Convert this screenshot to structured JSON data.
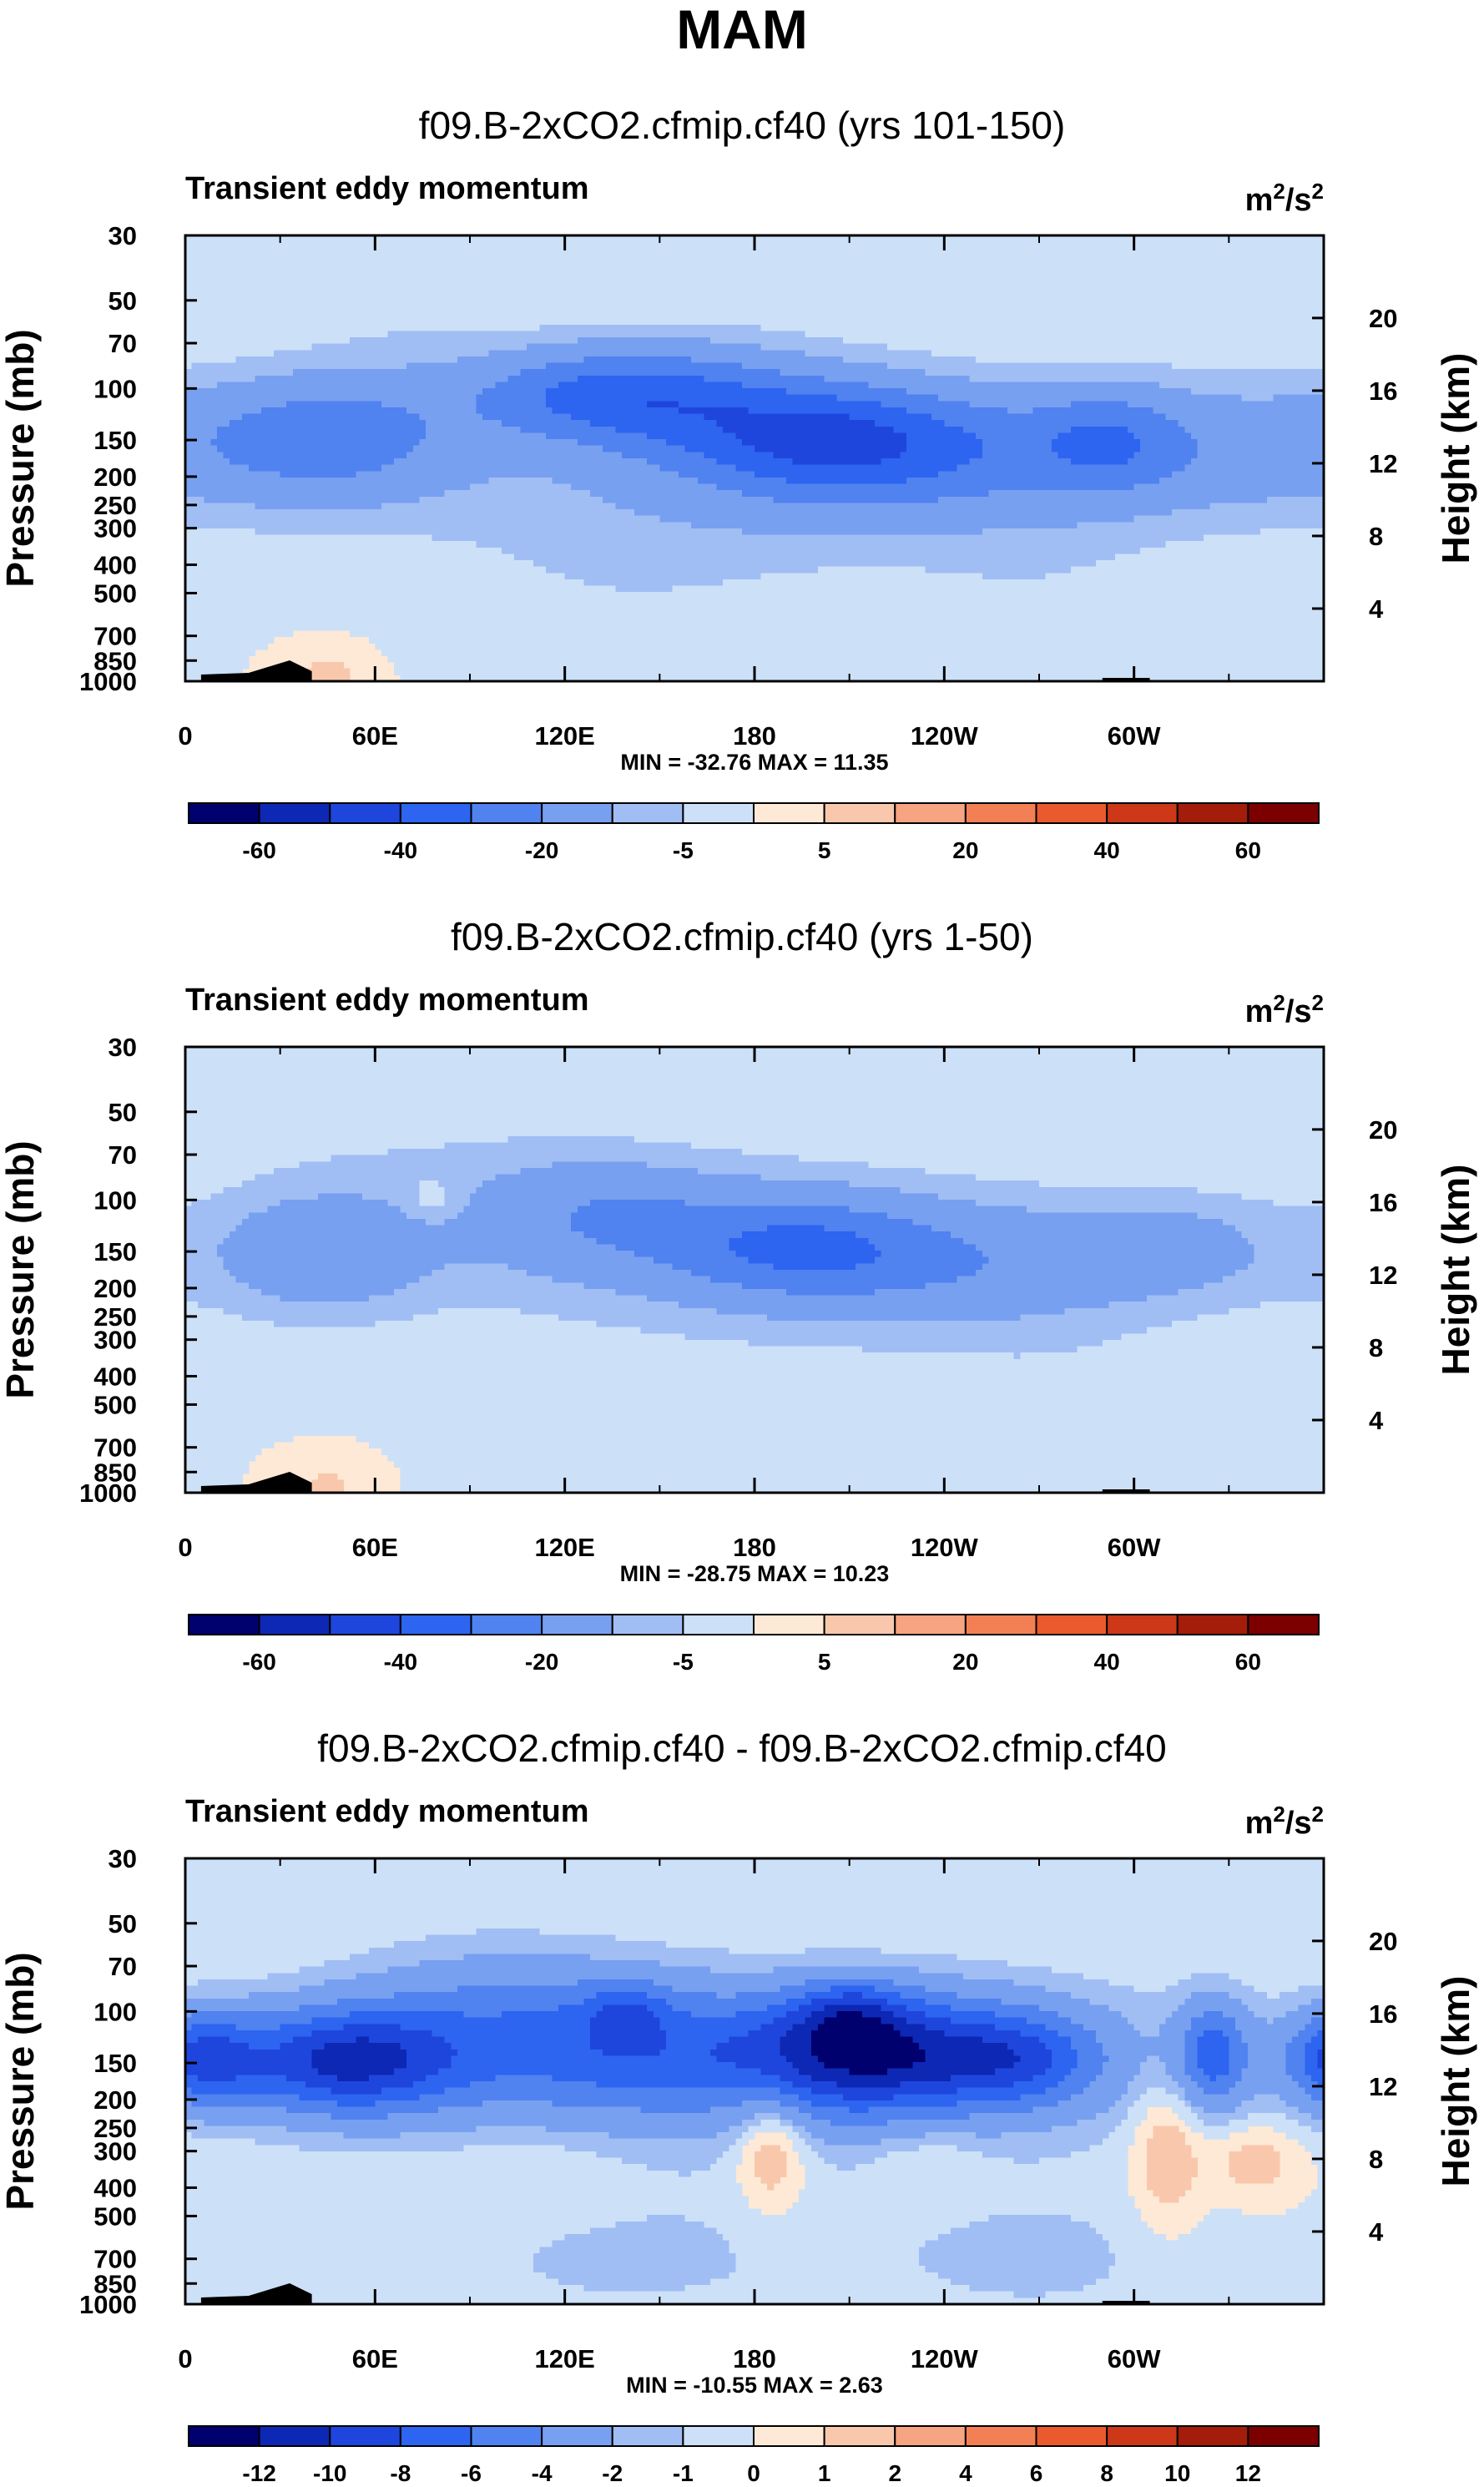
{
  "title": "MAM",
  "units_base": "m",
  "units_exp1": "2",
  "units_sep": "/s",
  "units_exp2": "2",
  "pressure_axis_label": "Pressure (mb)",
  "height_axis_label": "Height (km)",
  "colors": {
    "scale": [
      "#00006e",
      "#0d28b4",
      "#1e46dc",
      "#2d64f0",
      "#5082f0",
      "#78a0f0",
      "#a0bef4",
      "#cce0f8",
      "#fde9d6",
      "#f9c8ac",
      "#f6a482",
      "#f28054",
      "#ea5a2e",
      "#cc3818",
      "#a41c0a",
      "#7c0000"
    ],
    "land": "#000000"
  },
  "chart_data": [
    {
      "type": "contour",
      "title": "f09.B-2xCO2.cfmip.cf40 (yrs 101-150)",
      "subtitle": "Transient eddy momentum",
      "stats": "MIN = -32.76  MAX =  11.35",
      "x_ticks": [
        "0",
        "60E",
        "120E",
        "180",
        "120W",
        "60W"
      ],
      "x_tick_lons": [
        0,
        60,
        120,
        180,
        240,
        300
      ],
      "xlim": [
        0,
        360
      ],
      "pressure_ticks": [
        "30",
        "50",
        "70",
        "100",
        "150",
        "200",
        "250",
        "300",
        "400",
        "500",
        "700",
        "850",
        "1000"
      ],
      "pressure_values": [
        30,
        50,
        70,
        100,
        150,
        200,
        250,
        300,
        400,
        500,
        700,
        850,
        1000
      ],
      "height_ticks": [
        "20",
        "16",
        "12",
        "8",
        "4"
      ],
      "height_values": [
        20,
        16,
        12,
        8,
        4
      ],
      "colorbar_levels": [
        -70,
        -60,
        -50,
        -40,
        -30,
        -20,
        -10,
        -5,
        0,
        5,
        10,
        20,
        30,
        40,
        50,
        60
      ],
      "colorbar_labels": [
        "-60",
        "-40",
        "-20",
        "-5",
        "5",
        "20",
        "40",
        "60"
      ],
      "colorbar_label_index": [
        1,
        3,
        5,
        7,
        9,
        11,
        13,
        15
      ],
      "features": [
        {
          "lon": 45,
          "p": 145,
          "dlon": 30,
          "dz": 2.4,
          "amp": -22
        },
        {
          "lon": 130,
          "p": 105,
          "dlon": 30,
          "dz": 1.8,
          "amp": -26
        },
        {
          "lon": 165,
          "p": 118,
          "dlon": 30,
          "dz": 2.5,
          "amp": -14
        },
        {
          "lon": 205,
          "p": 150,
          "dlon": 30,
          "dz": 2.2,
          "amp": -30
        },
        {
          "lon": 255,
          "p": 160,
          "dlon": 35,
          "dz": 2.4,
          "amp": -14
        },
        {
          "lon": 292,
          "p": 150,
          "dlon": 16,
          "dz": 2.0,
          "amp": -15
        },
        {
          "lon": 325,
          "p": 155,
          "dlon": 35,
          "dz": 2.6,
          "amp": -10
        },
        {
          "lon": 185,
          "p": 240,
          "dlon": 95,
          "dz": 3.0,
          "amp": -7
        },
        {
          "lon": 180,
          "p": 140,
          "dlon": 80,
          "dz": 4.5,
          "amp": -3
        },
        {
          "lon": 10,
          "p": 170,
          "dlon": 40,
          "dz": 3.0,
          "amp": -4
        },
        {
          "lon": 70,
          "p": 55,
          "dlon": 25,
          "dz": 3.0,
          "amp": -3
        },
        {
          "lon": 140,
          "p": 500,
          "dlon": 40,
          "dz": 2.5,
          "amp": -3
        },
        {
          "lon": 270,
          "p": 550,
          "dlon": 30,
          "dz": 3.5,
          "amp": -3
        },
        {
          "lon": 45,
          "p": 950,
          "dlon": 8,
          "dz": 1.0,
          "amp": 7
        }
      ],
      "terrain": [
        [
          5,
          8
        ],
        [
          20,
          10
        ],
        [
          33,
          25
        ],
        [
          40,
          12
        ],
        [
          290,
          4
        ],
        [
          305,
          4
        ]
      ]
    },
    {
      "type": "contour",
      "title": "f09.B-2xCO2.cfmip.cf40 (yrs 1-50)",
      "subtitle": "Transient eddy momentum",
      "stats": "MIN = -28.75  MAX = 10.23",
      "x_ticks": [
        "0",
        "60E",
        "120E",
        "180",
        "120W",
        "60W"
      ],
      "x_tick_lons": [
        0,
        60,
        120,
        180,
        240,
        300
      ],
      "xlim": [
        0,
        360
      ],
      "pressure_ticks": [
        "30",
        "50",
        "70",
        "100",
        "150",
        "200",
        "250",
        "300",
        "400",
        "500",
        "700",
        "850",
        "1000"
      ],
      "pressure_values": [
        30,
        50,
        70,
        100,
        150,
        200,
        250,
        300,
        400,
        500,
        700,
        850,
        1000
      ],
      "height_ticks": [
        "20",
        "16",
        "12",
        "8",
        "4"
      ],
      "height_values": [
        20,
        16,
        12,
        8,
        4
      ],
      "colorbar_levels": [
        -70,
        -60,
        -50,
        -40,
        -30,
        -20,
        -10,
        -5,
        0,
        5,
        10,
        20,
        30,
        40,
        50,
        60
      ],
      "colorbar_labels": [
        "-60",
        "-40",
        "-20",
        "-5",
        "5",
        "20",
        "40",
        "60"
      ],
      "colorbar_label_index": [
        1,
        3,
        5,
        7,
        9,
        11,
        13,
        15
      ],
      "features": [
        {
          "lon": 45,
          "p": 150,
          "dlon": 22,
          "dz": 2.2,
          "amp": -14
        },
        {
          "lon": 130,
          "p": 110,
          "dlon": 30,
          "dz": 2.2,
          "amp": -14
        },
        {
          "lon": 195,
          "p": 145,
          "dlon": 30,
          "dz": 2.0,
          "amp": -23
        },
        {
          "lon": 255,
          "p": 170,
          "dlon": 35,
          "dz": 2.4,
          "amp": -10
        },
        {
          "lon": 310,
          "p": 145,
          "dlon": 25,
          "dz": 2.0,
          "amp": -10
        },
        {
          "lon": 185,
          "p": 170,
          "dlon": 90,
          "dz": 3.2,
          "amp": -6
        },
        {
          "lon": 175,
          "p": 120,
          "dlon": 80,
          "dz": 4.5,
          "amp": -3
        },
        {
          "lon": 15,
          "p": 160,
          "dlon": 35,
          "dz": 3.0,
          "amp": -4
        },
        {
          "lon": 60,
          "p": 60,
          "dlon": 40,
          "dz": 3.0,
          "amp": -3
        },
        {
          "lon": 200,
          "p": 650,
          "dlon": 50,
          "dz": 3.0,
          "amp": -3
        },
        {
          "lon": 285,
          "p": 500,
          "dlon": 30,
          "dz": 3.0,
          "amp": -3
        },
        {
          "lon": 45,
          "p": 950,
          "dlon": 8,
          "dz": 1.0,
          "amp": 6
        },
        {
          "lon": 78,
          "p": 100,
          "dlon": 6,
          "dz": 0.8,
          "amp": 6
        }
      ],
      "terrain": [
        [
          5,
          8
        ],
        [
          20,
          10
        ],
        [
          33,
          25
        ],
        [
          40,
          12
        ],
        [
          290,
          4
        ],
        [
          305,
          4
        ]
      ]
    },
    {
      "type": "contour",
      "title": "f09.B-2xCO2.cfmip.cf40 - f09.B-2xCO2.cfmip.cf40",
      "subtitle": "Transient eddy momentum",
      "stats": "MIN = -10.55  MAX =   2.63",
      "x_ticks": [
        "0",
        "60E",
        "120E",
        "180",
        "120W",
        "60W"
      ],
      "x_tick_lons": [
        0,
        60,
        120,
        180,
        240,
        300
      ],
      "xlim": [
        0,
        360
      ],
      "pressure_ticks": [
        "30",
        "50",
        "70",
        "100",
        "150",
        "200",
        "250",
        "300",
        "400",
        "500",
        "700",
        "850",
        "1000"
      ],
      "pressure_values": [
        30,
        50,
        70,
        100,
        150,
        200,
        250,
        300,
        400,
        500,
        700,
        850,
        1000
      ],
      "height_ticks": [
        "20",
        "16",
        "12",
        "8",
        "4"
      ],
      "height_values": [
        20,
        16,
        12,
        8,
        4
      ],
      "colorbar_levels": [
        -14,
        -12,
        -10,
        -8,
        -6,
        -4,
        -2,
        -1,
        0,
        1,
        2,
        4,
        6,
        8,
        10,
        12
      ],
      "colorbar_labels": [
        "-12",
        "-10",
        "-8",
        "-6",
        "-4",
        "-2",
        "-1",
        "0",
        "1",
        "2",
        "4",
        "6",
        "8",
        "10",
        "12"
      ],
      "colorbar_label_index": [
        1,
        2,
        3,
        4,
        5,
        6,
        7,
        8,
        9,
        10,
        11,
        12,
        13,
        14,
        15
      ],
      "features": [
        {
          "lon": 5,
          "p": 145,
          "dlon": 12,
          "dz": 1.8,
          "amp": -7
        },
        {
          "lon": 50,
          "p": 148,
          "dlon": 25,
          "dz": 2.0,
          "amp": -9
        },
        {
          "lon": 140,
          "p": 130,
          "dlon": 25,
          "dz": 2.5,
          "amp": -4
        },
        {
          "lon": 140,
          "p": 100,
          "dlon": 8,
          "dz": 1.0,
          "amp": -3
        },
        {
          "lon": 215,
          "p": 140,
          "dlon": 30,
          "dz": 2.2,
          "amp": -10
        },
        {
          "lon": 265,
          "p": 145,
          "dlon": 18,
          "dz": 1.8,
          "amp": -5
        },
        {
          "lon": 210,
          "p": 100,
          "dlon": 12,
          "dz": 1.2,
          "amp": -4
        },
        {
          "lon": 325,
          "p": 140,
          "dlon": 8,
          "dz": 2.0,
          "amp": -6
        },
        {
          "lon": 185,
          "p": 150,
          "dlon": 110,
          "dz": 3.5,
          "amp": -3
        },
        {
          "lon": 95,
          "p": 110,
          "dlon": 30,
          "dz": 3.0,
          "amp": -3
        },
        {
          "lon": 185,
          "p": 280,
          "dlon": 8,
          "dz": 2.5,
          "amp": 3
        },
        {
          "lon": 310,
          "p": 300,
          "dlon": 8,
          "dz": 3.0,
          "amp": 2.5
        },
        {
          "lon": 338,
          "p": 320,
          "dlon": 10,
          "dz": 1.5,
          "amp": 2
        },
        {
          "lon": 235,
          "p": 330,
          "dlon": 12,
          "dz": 1.5,
          "amp": 1
        },
        {
          "lon": 110,
          "p": 350,
          "dlon": 20,
          "dz": 1.8,
          "amp": 0.8
        },
        {
          "lon": 140,
          "p": 700,
          "dlon": 50,
          "dz": 3.0,
          "amp": -1.2
        },
        {
          "lon": 270,
          "p": 700,
          "dlon": 40,
          "dz": 3.0,
          "amp": -1.2
        }
      ],
      "terrain": [
        [
          5,
          8
        ],
        [
          20,
          10
        ],
        [
          33,
          25
        ],
        [
          40,
          12
        ],
        [
          290,
          4
        ],
        [
          305,
          4
        ]
      ]
    }
  ]
}
